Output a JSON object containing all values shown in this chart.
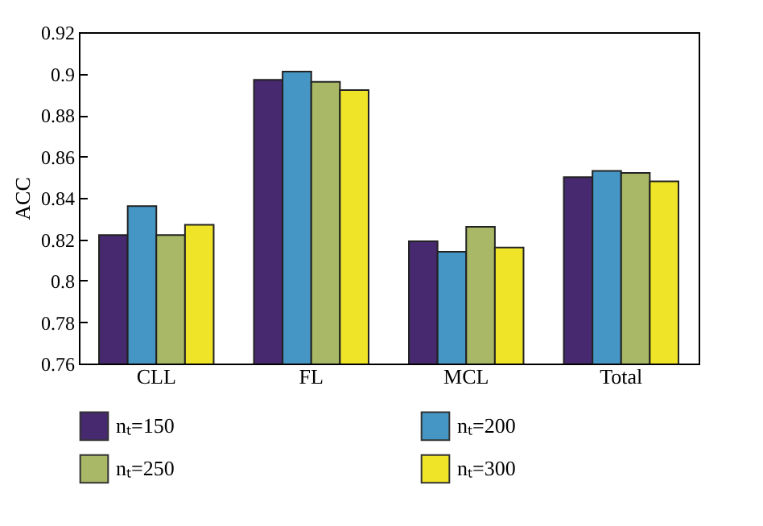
{
  "chart_data": {
    "type": "bar",
    "ylabel": "ACC",
    "categories": [
      "CLL",
      "FL",
      "MCL",
      "Total"
    ],
    "series": [
      {
        "name": "nₜ=150",
        "color": "#46296e",
        "values": [
          0.822,
          0.897,
          0.819,
          0.85
        ]
      },
      {
        "name": "nₜ=200",
        "color": "#4596c4",
        "values": [
          0.836,
          0.901,
          0.814,
          0.853
        ]
      },
      {
        "name": "nₜ=250",
        "color": "#a8b866",
        "values": [
          0.822,
          0.896,
          0.826,
          0.852
        ]
      },
      {
        "name": "nₜ=300",
        "color": "#f0e428",
        "values": [
          0.827,
          0.892,
          0.816,
          0.848
        ]
      }
    ],
    "ylim": [
      0.76,
      0.92
    ],
    "yticks": [
      0.76,
      0.78,
      0.8,
      0.82,
      0.84,
      0.86,
      0.88,
      0.9,
      0.92
    ],
    "grid": false,
    "legend": "bottom"
  }
}
